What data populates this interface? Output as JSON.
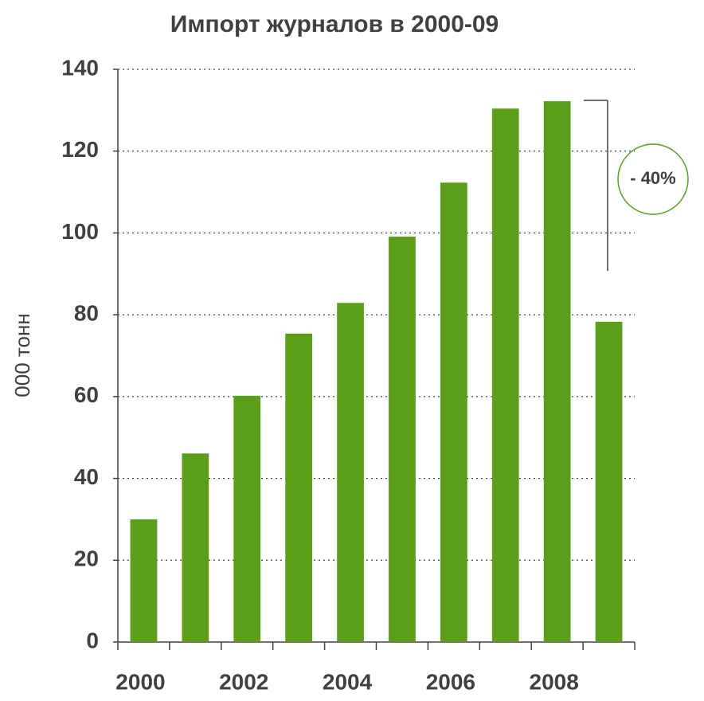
{
  "chart_data": {
    "type": "bar",
    "title": "Импорт журналов в 2000-09",
    "y_label": "000 тонн",
    "categories": [
      "2000",
      null,
      "2002",
      null,
      "2004",
      null,
      "2006",
      null,
      "2008",
      null
    ],
    "values": [
      30,
      46.1,
      60.2,
      75.4,
      82.9,
      99.1,
      112.3,
      130.4,
      132.2,
      78.3
    ],
    "color": "#5a9e1a",
    "ylim": [
      0,
      140
    ],
    "yticks": [
      0,
      20,
      40,
      60,
      80,
      100,
      120,
      140
    ],
    "grid": true,
    "annotation": "- 40%"
  }
}
